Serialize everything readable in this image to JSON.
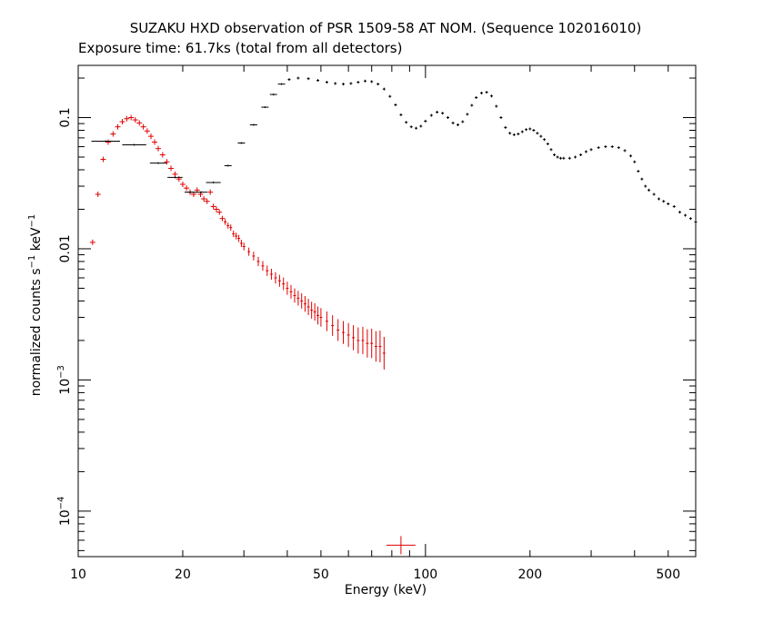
{
  "chart_data": {
    "type": "scatter",
    "title": "SUZAKU HXD observation of PSR 1509-58 AT NOM. (Sequence 102016010)",
    "subtitle": "Exposure time: 61.7ks (total from all detectors)",
    "xlabel": "Energy (keV)",
    "ylabel": {
      "base": "normalized counts s",
      "exp1": "−1",
      "mid": " keV",
      "exp2": "−1"
    },
    "x_scale": "log",
    "y_scale": "log",
    "xlim": [
      10,
      600
    ],
    "ylim": [
      4.5e-05,
      0.25
    ],
    "x_ticks": [
      {
        "value": 10,
        "label": "10"
      },
      {
        "value": 20,
        "label": "20"
      },
      {
        "value": 50,
        "label": "50"
      },
      {
        "value": 100,
        "label": "100"
      },
      {
        "value": 200,
        "label": "200"
      },
      {
        "value": 500,
        "label": "500"
      }
    ],
    "y_ticks": [
      {
        "value": 0.1,
        "label": "0.1",
        "sup": ""
      },
      {
        "value": 0.01,
        "label": "0.01",
        "sup": ""
      },
      {
        "value": 0.001,
        "label": "10",
        "sup": "−3"
      },
      {
        "value": 0.0001,
        "label": "10",
        "sup": "−4"
      }
    ],
    "grid": false,
    "legend": "none",
    "colors": {
      "series_red": "#e00000",
      "series_black": "#000000"
    },
    "series": [
      {
        "color": "#e00000",
        "points": [
          [
            11.0,
            0.0112
          ],
          [
            11.4,
            0.026
          ],
          [
            11.8,
            0.048
          ],
          [
            12.2,
            0.065
          ],
          [
            12.6,
            0.075
          ],
          [
            13.0,
            0.085
          ],
          [
            13.4,
            0.093
          ],
          [
            13.8,
            0.098
          ],
          [
            14.2,
            0.1
          ],
          [
            14.6,
            0.096
          ],
          [
            15.0,
            0.091
          ],
          [
            15.4,
            0.085
          ],
          [
            15.8,
            0.079
          ],
          [
            16.2,
            0.072
          ],
          [
            16.6,
            0.065
          ],
          [
            17.0,
            0.058
          ],
          [
            17.5,
            0.052
          ],
          [
            18.0,
            0.046
          ],
          [
            18.5,
            0.041
          ],
          [
            19.0,
            0.037
          ],
          [
            19.5,
            0.034
          ],
          [
            20.0,
            0.031
          ],
          [
            20.5,
            0.029
          ],
          [
            21.0,
            0.027
          ],
          [
            21.5,
            0.026
          ],
          [
            22.0,
            0.028
          ],
          [
            22.5,
            0.026
          ],
          [
            23.0,
            0.024
          ],
          [
            23.5,
            0.023
          ],
          [
            24.0,
            0.027
          ],
          [
            24.5,
            0.021
          ],
          [
            25.0,
            0.02
          ],
          [
            25.5,
            0.019
          ],
          [
            26.0,
            0.017
          ],
          [
            26.5,
            0.016
          ],
          [
            27.0,
            0.015
          ],
          [
            27.5,
            0.0145
          ],
          [
            28.0,
            0.013
          ],
          [
            28.5,
            0.0125
          ],
          [
            29.0,
            0.012
          ],
          [
            29.5,
            0.011
          ],
          [
            30.0,
            0.0104
          ],
          [
            31.0,
            0.0095
          ],
          [
            32.0,
            0.0088
          ],
          [
            33.0,
            0.008
          ],
          [
            34.0,
            0.0074
          ],
          [
            35.0,
            0.0068
          ],
          [
            36.0,
            0.0064
          ],
          [
            37.0,
            0.006
          ],
          [
            38.0,
            0.0057
          ],
          [
            39.0,
            0.0054
          ],
          [
            40.0,
            0.005
          ],
          [
            41.0,
            0.0047
          ],
          [
            42.0,
            0.0044
          ],
          [
            43.0,
            0.0042
          ],
          [
            44.0,
            0.004
          ],
          [
            45.0,
            0.0038
          ],
          [
            46.0,
            0.0036
          ],
          [
            47.0,
            0.0034
          ],
          [
            48.0,
            0.0033
          ],
          [
            49.0,
            0.0031
          ],
          [
            50.0,
            0.003
          ],
          [
            52.0,
            0.0028
          ],
          [
            54.0,
            0.0026
          ],
          [
            56.0,
            0.0024
          ],
          [
            58.0,
            0.0023
          ],
          [
            60.0,
            0.0022
          ],
          [
            62.0,
            0.0021
          ],
          [
            64.0,
            0.002
          ],
          [
            66.0,
            0.002
          ],
          [
            68.0,
            0.0019
          ],
          [
            70.0,
            0.0019
          ],
          [
            72.0,
            0.0018
          ],
          [
            74.0,
            0.0018
          ],
          [
            76.0,
            0.0016
          ],
          [
            85.0,
            5.5e-05
          ]
        ]
      },
      {
        "color": "#000000",
        "points": [
          [
            12.0,
            0.066
          ],
          [
            14.5,
            0.062
          ],
          [
            17.0,
            0.045
          ],
          [
            19.0,
            0.035
          ],
          [
            21.0,
            0.027
          ],
          [
            22.6,
            0.027
          ],
          [
            24.5,
            0.032
          ],
          [
            27.0,
            0.043
          ],
          [
            29.5,
            0.064
          ],
          [
            32.0,
            0.088
          ],
          [
            34.5,
            0.12
          ],
          [
            36.5,
            0.15
          ],
          [
            38.5,
            0.18
          ],
          [
            40.5,
            0.195
          ],
          [
            43.0,
            0.2
          ],
          [
            46.0,
            0.198
          ],
          [
            49.0,
            0.192
          ],
          [
            52.0,
            0.186
          ],
          [
            55.0,
            0.182
          ],
          [
            58.0,
            0.18
          ],
          [
            61.0,
            0.182
          ],
          [
            64.0,
            0.186
          ],
          [
            67.0,
            0.19
          ],
          [
            70.0,
            0.188
          ],
          [
            73.0,
            0.18
          ],
          [
            76.0,
            0.165
          ],
          [
            79.0,
            0.145
          ],
          [
            82.0,
            0.125
          ],
          [
            85.0,
            0.105
          ],
          [
            88.0,
            0.092
          ],
          [
            91.0,
            0.085
          ],
          [
            94.0,
            0.083
          ],
          [
            97.0,
            0.086
          ],
          [
            100.0,
            0.094
          ],
          [
            104.0,
            0.104
          ],
          [
            108.0,
            0.11
          ],
          [
            112.0,
            0.108
          ],
          [
            116.0,
            0.1
          ],
          [
            120.0,
            0.091
          ],
          [
            124.0,
            0.088
          ],
          [
            128.0,
            0.093
          ],
          [
            132.0,
            0.106
          ],
          [
            136.0,
            0.124
          ],
          [
            140.0,
            0.142
          ],
          [
            145.0,
            0.154
          ],
          [
            150.0,
            0.156
          ],
          [
            155.0,
            0.146
          ],
          [
            160.0,
            0.122
          ],
          [
            165.0,
            0.1
          ],
          [
            170.0,
            0.084
          ],
          [
            175.0,
            0.076
          ],
          [
            180.0,
            0.074
          ],
          [
            185.0,
            0.075
          ],
          [
            190.0,
            0.078
          ],
          [
            195.0,
            0.081
          ],
          [
            200.0,
            0.082
          ],
          [
            205.0,
            0.08
          ],
          [
            210.0,
            0.076
          ],
          [
            215.0,
            0.072
          ],
          [
            220.0,
            0.068
          ],
          [
            225.0,
            0.063
          ],
          [
            230.0,
            0.057
          ],
          [
            235.0,
            0.052
          ],
          [
            240.0,
            0.05
          ],
          [
            245.0,
            0.049
          ],
          [
            250.0,
            0.049
          ],
          [
            260.0,
            0.049
          ],
          [
            270.0,
            0.05
          ],
          [
            280.0,
            0.052
          ],
          [
            290.0,
            0.055
          ],
          [
            300.0,
            0.057
          ],
          [
            315.0,
            0.059
          ],
          [
            330.0,
            0.06
          ],
          [
            345.0,
            0.06
          ],
          [
            360.0,
            0.059
          ],
          [
            375.0,
            0.056
          ],
          [
            390.0,
            0.051
          ],
          [
            400.0,
            0.046
          ],
          [
            410.0,
            0.039
          ],
          [
            420.0,
            0.034
          ],
          [
            430.0,
            0.03
          ],
          [
            440.0,
            0.028
          ],
          [
            455.0,
            0.026
          ],
          [
            470.0,
            0.024
          ],
          [
            485.0,
            0.023
          ],
          [
            500.0,
            0.022
          ],
          [
            520.0,
            0.021
          ],
          [
            540.0,
            0.019
          ],
          [
            560.0,
            0.018
          ],
          [
            580.0,
            0.017
          ],
          [
            600.0,
            0.016
          ]
        ]
      }
    ]
  }
}
